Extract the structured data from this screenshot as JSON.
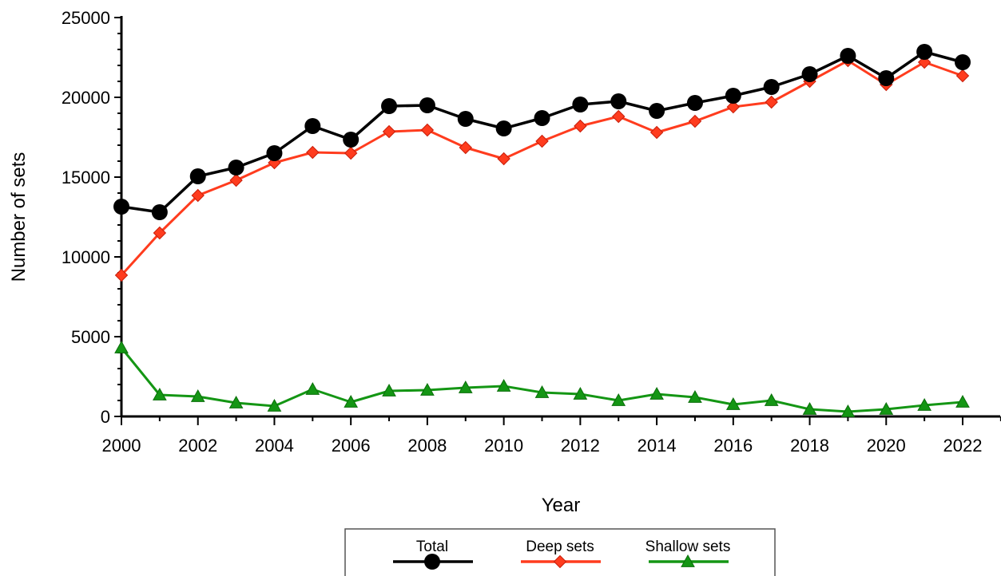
{
  "chart_data": {
    "type": "line",
    "xlabel": "Year",
    "ylabel": "Number of sets",
    "xlim": [
      2000,
      2023
    ],
    "ylim": [
      0,
      25000
    ],
    "x_ticks": [
      2000,
      2002,
      2004,
      2006,
      2008,
      2010,
      2012,
      2014,
      2016,
      2018,
      2020,
      2022
    ],
    "y_ticks": [
      0,
      5000,
      10000,
      15000,
      20000,
      25000
    ],
    "grid": false,
    "legend_position": "bottom-center",
    "x": [
      2000,
      2001,
      2002,
      2003,
      2004,
      2005,
      2006,
      2007,
      2008,
      2009,
      2010,
      2011,
      2012,
      2013,
      2014,
      2015,
      2016,
      2017,
      2018,
      2019,
      2020,
      2021,
      2022
    ],
    "series": [
      {
        "name": "Total",
        "color": "#000000",
        "marker": "circle",
        "values": [
          13150,
          12800,
          15050,
          15600,
          16500,
          18200,
          17350,
          19450,
          19500,
          18650,
          18050,
          18700,
          19550,
          19750,
          19150,
          19650,
          20100,
          20650,
          21450,
          22600,
          21200,
          22850,
          22200
        ]
      },
      {
        "name": "Deep sets",
        "color": "#ff3c1e",
        "marker": "diamond",
        "values": [
          8850,
          11500,
          13850,
          14800,
          15900,
          16550,
          16500,
          17850,
          17950,
          16850,
          16150,
          17250,
          18200,
          18800,
          17800,
          18500,
          19400,
          19700,
          21000,
          22300,
          20800,
          22200,
          21350
        ]
      },
      {
        "name": "Shallow sets",
        "color": "#149614",
        "marker": "triangle",
        "values": [
          4300,
          1350,
          1250,
          850,
          650,
          1700,
          900,
          1600,
          1650,
          1800,
          1900,
          1500,
          1400,
          1000,
          1400,
          1200,
          750,
          1000,
          450,
          300,
          450,
          700,
          900
        ]
      }
    ]
  }
}
